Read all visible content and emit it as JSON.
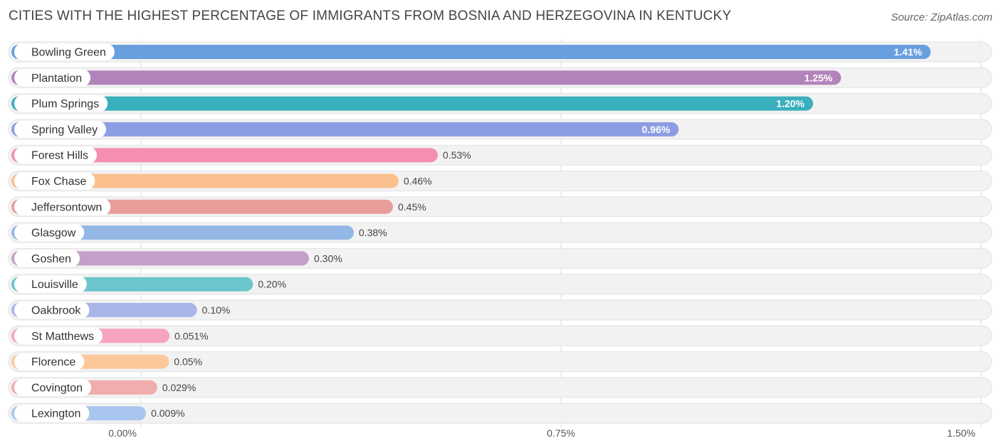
{
  "title": "CITIES WITH THE HIGHEST PERCENTAGE OF IMMIGRANTS FROM BOSNIA AND HERZEGOVINA IN KENTUCKY",
  "source": "Source: ZipAtlas.com",
  "chart_data": {
    "type": "bar",
    "orientation": "horizontal",
    "title": "CITIES WITH THE HIGHEST PERCENTAGE OF IMMIGRANTS FROM BOSNIA AND HERZEGOVINA IN KENTUCKY",
    "categories": [
      "Bowling Green",
      "Plantation",
      "Plum Springs",
      "Spring Valley",
      "Forest Hills",
      "Fox Chase",
      "Jeffersontown",
      "Glasgow",
      "Goshen",
      "Louisville",
      "Oakbrook",
      "St Matthews",
      "Florence",
      "Covington",
      "Lexington"
    ],
    "values": [
      1.41,
      1.25,
      1.2,
      0.96,
      0.53,
      0.46,
      0.45,
      0.38,
      0.3,
      0.2,
      0.1,
      0.051,
      0.05,
      0.029,
      0.009
    ],
    "value_labels": [
      "1.41%",
      "1.25%",
      "1.20%",
      "0.96%",
      "0.53%",
      "0.46%",
      "0.45%",
      "0.38%",
      "0.30%",
      "0.20%",
      "0.10%",
      "0.051%",
      "0.05%",
      "0.029%",
      "0.009%"
    ],
    "colors": [
      "#6a9fdf",
      "#b183ba",
      "#3aafbd",
      "#8c9de3",
      "#f48fb0",
      "#fbc08d",
      "#e99e9c",
      "#93b8e6",
      "#c49fc8",
      "#6cc5cd",
      "#aab5ea",
      "#f7a4bf",
      "#fbc89a",
      "#f0adad",
      "#a9c6ee"
    ],
    "xlim": [
      0,
      1.5
    ],
    "x_ticks": [
      0,
      0.75,
      1.5
    ],
    "x_tick_labels": [
      "0.00%",
      "0.75%",
      "1.50%"
    ],
    "grid": true
  }
}
